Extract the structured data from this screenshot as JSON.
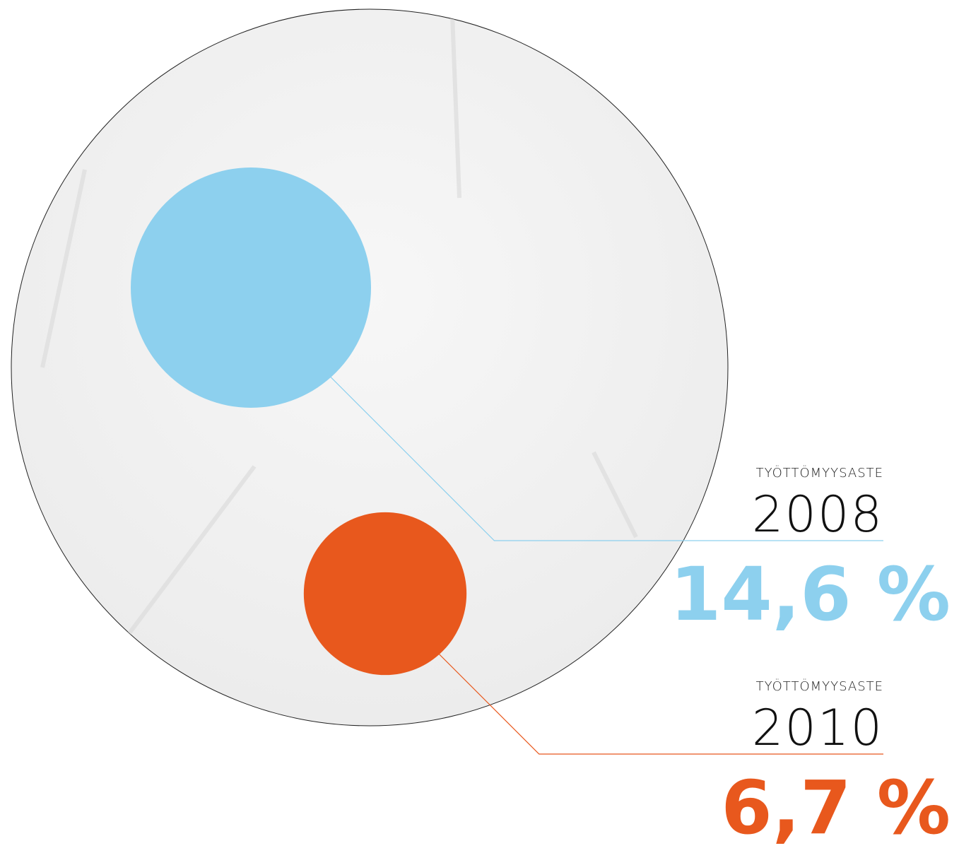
{
  "chart_data": {
    "type": "bubble",
    "categories": [
      "2008",
      "2010"
    ],
    "series": [
      {
        "name": "TYÖTTÖMYYSASTE",
        "values": [
          14.6,
          6.7
        ],
        "value_labels": [
          "14,6 %",
          "6,7 %"
        ]
      }
    ],
    "colors": [
      "#8dd0ee",
      "#e8581d"
    ]
  }
}
